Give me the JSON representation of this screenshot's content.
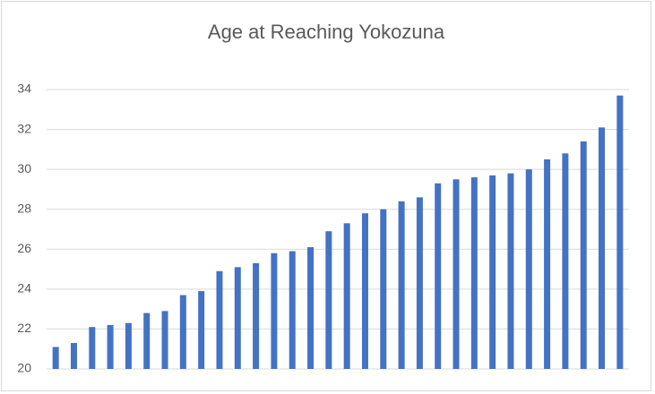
{
  "chart_data": {
    "type": "bar",
    "title": "Age at Reaching Yokozuna",
    "categories": [
      null,
      null,
      null,
      null,
      null,
      null,
      null,
      null,
      null,
      null,
      null,
      null,
      null,
      null,
      null,
      null,
      null,
      null,
      null,
      null,
      null,
      null,
      null,
      null,
      null,
      null,
      null,
      null,
      null,
      null,
      null,
      null
    ],
    "values": [
      21.1,
      21.3,
      22.1,
      22.2,
      22.3,
      22.8,
      22.9,
      23.7,
      23.9,
      24.9,
      25.1,
      25.3,
      25.8,
      25.9,
      26.1,
      26.9,
      27.3,
      27.8,
      28.0,
      28.4,
      28.6,
      29.3,
      29.5,
      29.6,
      29.7,
      29.8,
      30.0,
      30.5,
      30.8,
      31.4,
      32.1,
      33.7
    ],
    "color": "#4472c4",
    "ylim": [
      20,
      34
    ],
    "yticks": [
      20,
      22,
      24,
      26,
      28,
      30,
      32,
      34
    ],
    "grid": true
  }
}
